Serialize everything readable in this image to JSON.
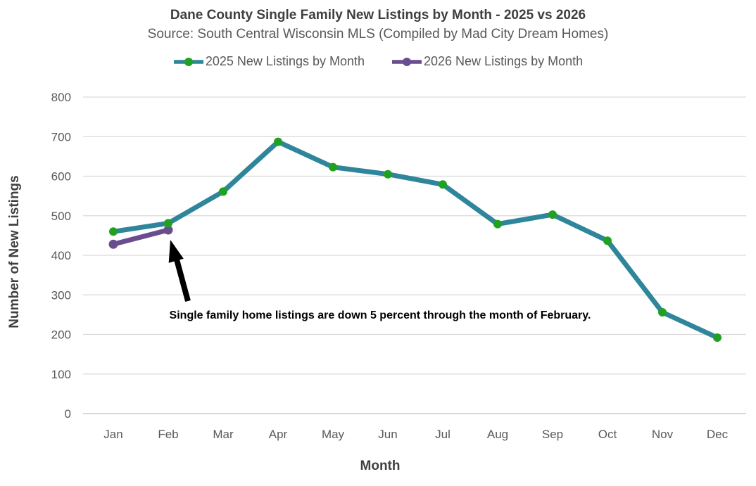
{
  "header": {
    "title": "Dane County Single Family New Listings by Month - 2025 vs 2026",
    "subtitle": "Source: South Central Wisconsin MLS (Compiled by Mad City Dream Homes)"
  },
  "axes": {
    "x_title": "Month",
    "y_title": "Number of New Listings"
  },
  "annotation": {
    "text": "Single family home listings are down 5 percent through the month of February.",
    "arrow": true,
    "arrow_points_to": "Feb 2026 data point"
  },
  "colors": {
    "grid": "#D9D9D9",
    "axis_line": "#BFBFBF",
    "tick_text": "#595959",
    "title_text": "#3F3F3F",
    "annotation": "#000000"
  },
  "chart_data": {
    "type": "line",
    "title": "Dane County Single Family New Listings by Month - 2025 vs 2026",
    "xlabel": "Month",
    "ylabel": "Number of New Listings",
    "ylim": [
      0,
      800
    ],
    "ytick_step": 100,
    "grid": true,
    "legend_position": "top",
    "categories": [
      "Jan",
      "Feb",
      "Mar",
      "Apr",
      "May",
      "Jun",
      "Jul",
      "Aug",
      "Sep",
      "Oct",
      "Nov",
      "Dec"
    ],
    "series": [
      {
        "name": "2025 New Listings by Month",
        "color": "#2F869B",
        "marker": "circle",
        "marker_color": "#21A121",
        "values": [
          460,
          481,
          561,
          687,
          623,
          605,
          579,
          479,
          503,
          437,
          256,
          192
        ]
      },
      {
        "name": "2026 New Listings by Month",
        "color": "#6A4D8F",
        "marker": "circle",
        "marker_color": "#6A4D8F",
        "values": [
          428,
          464,
          null,
          null,
          null,
          null,
          null,
          null,
          null,
          null,
          null,
          null
        ]
      }
    ]
  }
}
